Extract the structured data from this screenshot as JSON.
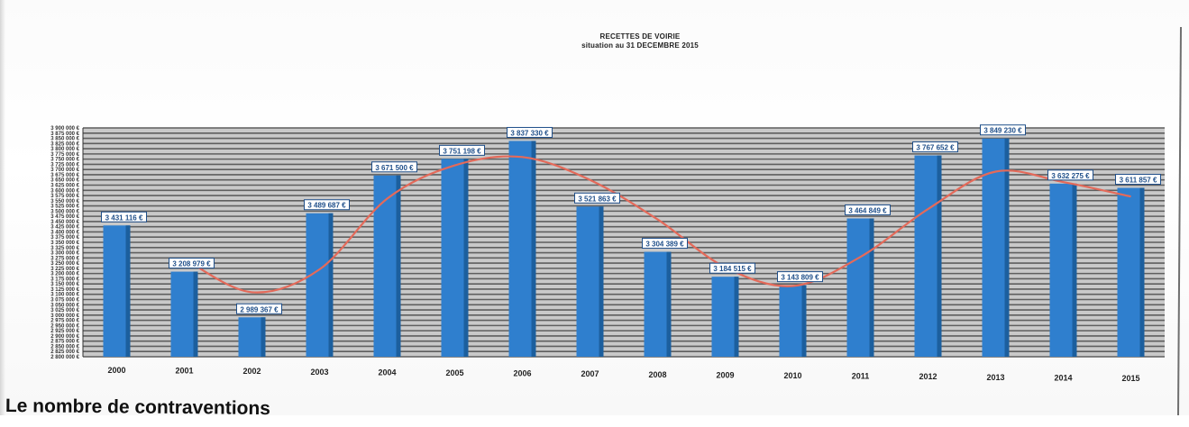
{
  "page": {
    "title_line1": "RECETTES DE VOIRIE",
    "title_line2": "situation au 31 DECEMBRE 2015",
    "footer_text": "Le nombre de contraventions"
  },
  "colors": {
    "bar": "#2f7fce",
    "bar_dark": "#1c5f9e",
    "trend": "#e46a5a",
    "plot_bg": "#c9c9c9",
    "grid": "#5f5f5f"
  },
  "chart_data": {
    "type": "bar",
    "categories": [
      "2000",
      "2001",
      "2002",
      "2003",
      "2004",
      "2005",
      "2006",
      "2007",
      "2008",
      "2009",
      "2010",
      "2011",
      "2012",
      "2013",
      "2014",
      "2015"
    ],
    "values": [
      3431116,
      3208979,
      2989367,
      3489687,
      3671500,
      3751198,
      3837330,
      3521863,
      3304389,
      3184515,
      3143809,
      3464849,
      3767652,
      3849230,
      3632275,
      3611857
    ],
    "value_labels": [
      "3 431 116 €",
      "3 208 979 €",
      "2 989 367 €",
      "3 489 687 €",
      "3 671 500 €",
      "3 751 198 €",
      "3 837 330 €",
      "3 521 863 €",
      "3 304 389 €",
      "3 184 515 €",
      "3 143 809 €",
      "3 464 849 €",
      "3 767 652 €",
      "3 849 230 €",
      "3 632 275 €",
      "3 611 857 €"
    ],
    "trend": {
      "type": "line",
      "x": [
        "2001",
        "2002",
        "2003",
        "2004",
        "2005",
        "2006",
        "2007",
        "2008",
        "2009",
        "2010",
        "2011",
        "2012",
        "2013",
        "2014",
        "2015"
      ],
      "values": [
        3270000,
        3110000,
        3220000,
        3560000,
        3720000,
        3760000,
        3650000,
        3460000,
        3230000,
        3140000,
        3280000,
        3510000,
        3690000,
        3640000,
        3570000
      ]
    },
    "title": "RECETTES DE VOIRIE",
    "subtitle": "situation au 31 DECEMBRE 2015",
    "ylim": [
      2800000,
      3900000
    ],
    "y_ticks": [
      3900000,
      3875000,
      3850000,
      3825000,
      3800000,
      3775000,
      3750000,
      3725000,
      3700000,
      3675000,
      3650000,
      3625000,
      3600000,
      3575000,
      3550000,
      3525000,
      3500000,
      3475000,
      3450000,
      3425000,
      3400000,
      3375000,
      3350000,
      3325000,
      3300000,
      3275000,
      3250000,
      3225000,
      3200000,
      3175000,
      3150000,
      3125000,
      3100000,
      3075000,
      3050000,
      3025000,
      3000000,
      2975000,
      2950000,
      2925000,
      2900000,
      2875000,
      2850000,
      2825000,
      2800000
    ],
    "y_tick_suffix": " €",
    "grid": true,
    "legend": "none"
  }
}
